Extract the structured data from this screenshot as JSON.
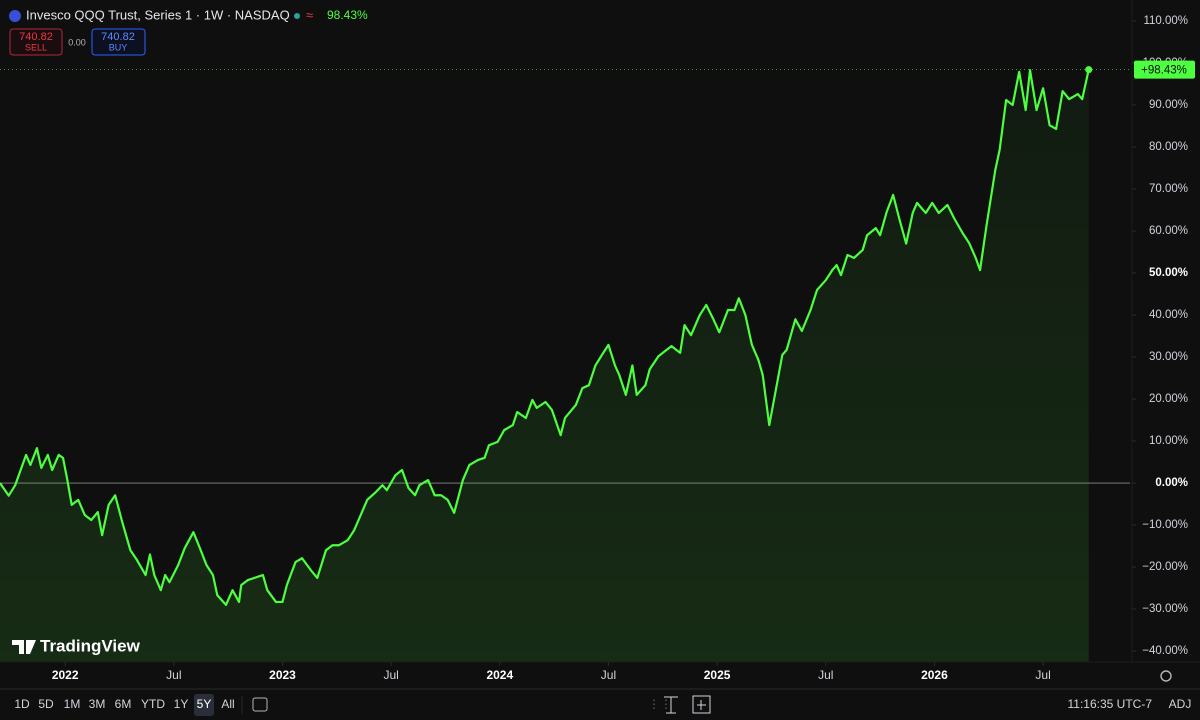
{
  "header": {
    "symbol": "Invesco QQQ Trust, Series 1 · 1W · NASDAQ",
    "change": "98.43%",
    "sell_price": "740.82",
    "sell_label": "SELL",
    "spread": "0.00",
    "buy_price": "740.82",
    "buy_label": "BUY"
  },
  "chart_data": {
    "type": "line",
    "color": "#4cff3f",
    "area": true,
    "grid": false,
    "last_value_label": "+98.43%",
    "x": [
      2021.7,
      2021.74,
      2021.77,
      2021.82,
      2021.84,
      2021.87,
      2021.89,
      2021.92,
      2021.94,
      2021.97,
      2021.99,
      2022.01,
      2022.03,
      2022.06,
      2022.09,
      2022.12,
      2022.15,
      2022.17,
      2022.2,
      2022.23,
      2022.26,
      2022.3,
      2022.33,
      2022.37,
      2022.39,
      2022.41,
      2022.44,
      2022.46,
      2022.48,
      2022.52,
      2022.55,
      2022.59,
      2022.62,
      2022.65,
      2022.68,
      2022.7,
      2022.74,
      2022.77,
      2022.8,
      2022.81,
      2022.84,
      2022.87,
      2022.91,
      2022.93,
      2022.97,
      2023.0,
      2023.02,
      2023.06,
      2023.09,
      2023.13,
      2023.16,
      2023.2,
      2023.23,
      2023.26,
      2023.3,
      2023.33,
      2023.37,
      2023.39,
      2023.43,
      2023.46,
      2023.48,
      2023.52,
      2023.55,
      2023.58,
      2023.61,
      2023.63,
      2023.67,
      2023.7,
      2023.73,
      2023.76,
      2023.79,
      2023.83,
      2023.86,
      2023.9,
      2023.93,
      2023.95,
      2023.99,
      2024.02,
      2024.06,
      2024.08,
      2024.12,
      2024.15,
      2024.17,
      2024.21,
      2024.24,
      2024.28,
      2024.3,
      2024.35,
      2024.38,
      2024.41,
      2024.44,
      2024.47,
      2024.5,
      2024.53,
      2024.55,
      2024.58,
      2024.61,
      2024.63,
      2024.67,
      2024.69,
      2024.73,
      2024.76,
      2024.79,
      2024.83,
      2024.85,
      2024.88,
      2024.92,
      2024.95,
      2024.98,
      2025.01,
      2025.05,
      2025.08,
      2025.1,
      2025.13,
      2025.16,
      2025.19,
      2025.21,
      2025.24,
      2025.27,
      2025.3,
      2025.32,
      2025.36,
      2025.39,
      2025.43,
      2025.46,
      2025.5,
      2025.53,
      2025.55,
      2025.57,
      2025.6,
      2025.63,
      2025.67,
      2025.69,
      2025.73,
      2025.75,
      2025.78,
      2025.81,
      2025.84,
      2025.87,
      2025.9,
      2025.92,
      2025.96,
      2025.99,
      2026.02,
      2026.06,
      2026.09,
      2026.13,
      2026.16,
      2026.19,
      2026.21,
      2026.24,
      2026.28,
      2026.3,
      2026.33,
      2026.36,
      2026.39,
      2026.42,
      2026.44,
      2026.47,
      2026.5,
      2026.53,
      2026.56,
      2026.59,
      2026.62,
      2026.66,
      2026.68,
      2026.71
    ],
    "values": [
      0,
      -3,
      -0.5,
      6.7,
      4.3,
      8.3,
      3.6,
      6.7,
      3.1,
      6.7,
      6,
      0.7,
      -5.2,
      -4,
      -7.6,
      -8.8,
      -6.9,
      -12.4,
      -5.2,
      -2.9,
      -8.8,
      -16,
      -18.3,
      -21.9,
      -17,
      -21.9,
      -25.5,
      -21.9,
      -23.6,
      -19.5,
      -15.5,
      -11.7,
      -15.5,
      -19.5,
      -21.9,
      -26.7,
      -29,
      -25.5,
      -28.3,
      -24.3,
      -23.1,
      -22.6,
      -21.9,
      -25.5,
      -28.3,
      -28.3,
      -24.3,
      -18.8,
      -17.9,
      -20.7,
      -22.6,
      -16,
      -14.8,
      -14.8,
      -13.6,
      -11.2,
      -6.4,
      -4,
      -2.1,
      -0.5,
      -1.7,
      1.9,
      3.1,
      -1.2,
      -2.9,
      -0.5,
      0.7,
      -2.9,
      -2.9,
      -4,
      -7.1,
      0.7,
      4.3,
      5.5,
      6,
      9,
      9.8,
      12.6,
      13.8,
      16.9,
      15.5,
      19.8,
      17.9,
      19.3,
      17.4,
      11.4,
      15.5,
      18.6,
      22.6,
      23.3,
      28,
      30.5,
      32.9,
      28,
      25.7,
      21,
      28,
      21,
      23.3,
      27.1,
      30.2,
      31.4,
      32.6,
      31,
      37.6,
      35.2,
      40,
      42.4,
      39.3,
      35.9,
      41.2,
      41.2,
      44,
      40,
      32.9,
      29.3,
      25.7,
      13.8,
      22.1,
      30.5,
      31.7,
      39,
      36.2,
      41.2,
      46,
      48.3,
      50.7,
      51.9,
      49.5,
      54.3,
      53.6,
      55.5,
      59,
      60.7,
      59,
      64.5,
      68.6,
      62.6,
      57,
      64.3,
      66.7,
      64.3,
      66.7,
      64.3,
      66.2,
      63.1,
      59.5,
      57.1,
      53.6,
      50.7,
      61.4,
      74.5,
      79.3,
      91.2,
      90,
      97.9,
      88.8,
      98.3,
      88.8,
      94,
      85.2,
      84.3,
      93.3,
      91.4,
      92.6,
      91.4,
      98.43
    ],
    "xlim": [
      2021.7,
      2026.9
    ],
    "xticks": [
      {
        "value": 2022,
        "label": "2022"
      },
      {
        "value": 2022.5,
        "label": "Jul"
      },
      {
        "value": 2023,
        "label": "2023"
      },
      {
        "value": 2023.5,
        "label": "Jul"
      },
      {
        "value": 2024,
        "label": "2024"
      },
      {
        "value": 2024.5,
        "label": "Jul"
      },
      {
        "value": 2025,
        "label": "2025"
      },
      {
        "value": 2025.5,
        "label": "Jul"
      },
      {
        "value": 2026,
        "label": "2026"
      },
      {
        "value": 2026.5,
        "label": "Jul"
      }
    ],
    "ylim": [
      -42.6,
      115
    ],
    "yticks": [
      {
        "value": 110,
        "label": "110.00%"
      },
      {
        "value": 100,
        "label": "100.00%"
      },
      {
        "value": 90,
        "label": "90.00%"
      },
      {
        "value": 80,
        "label": "80.00%"
      },
      {
        "value": 70,
        "label": "70.00%"
      },
      {
        "value": 60,
        "label": "60.00%"
      },
      {
        "value": 50,
        "label": "50.00%"
      },
      {
        "value": 40,
        "label": "40.00%"
      },
      {
        "value": 30,
        "label": "30.00%"
      },
      {
        "value": 20,
        "label": "20.00%"
      },
      {
        "value": 10,
        "label": "10.00%"
      },
      {
        "value": 0,
        "label": "0.00%"
      },
      {
        "value": -10,
        "label": "−10.00%"
      },
      {
        "value": -20,
        "label": "−20.00%"
      },
      {
        "value": -30,
        "label": "−30.00%"
      },
      {
        "value": -40,
        "label": "−40.00%"
      }
    ]
  },
  "brand": "TradingView",
  "toolbar": {
    "ranges": [
      "1D",
      "5D",
      "1M",
      "3M",
      "6M",
      "YTD",
      "1Y",
      "5Y",
      "All"
    ],
    "clock": "11:16:35 UTC-7",
    "adj": "ADJ"
  }
}
